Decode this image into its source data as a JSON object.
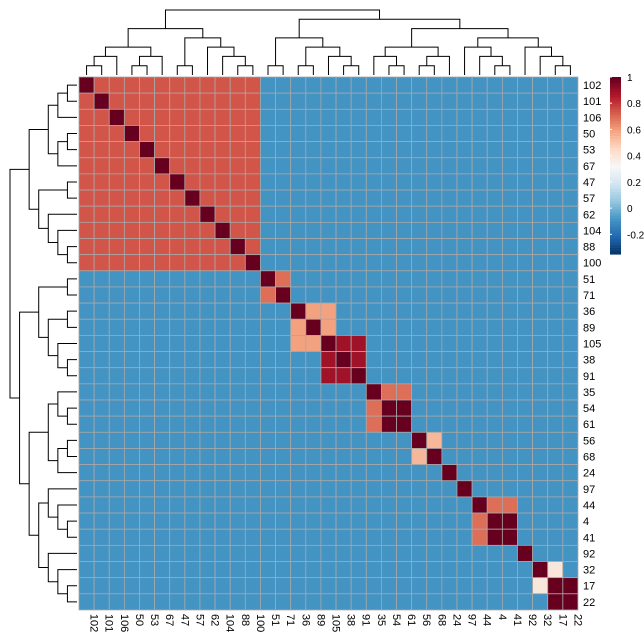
{
  "chart_data": {
    "type": "heatmap",
    "labels": [
      "102",
      "101",
      "106",
      "50",
      "53",
      "67",
      "47",
      "57",
      "62",
      "104",
      "88",
      "100",
      "51",
      "71",
      "36",
      "89",
      "105",
      "38",
      "91",
      "35",
      "54",
      "61",
      "56",
      "68",
      "24",
      "97",
      "44",
      "4",
      "41",
      "92",
      "32",
      "17",
      "22"
    ],
    "blocks": [
      {
        "members": [
          "102",
          "101",
          "106",
          "50",
          "53",
          "67",
          "47",
          "57",
          "62",
          "104",
          "88",
          "100"
        ],
        "value": 0.75
      },
      {
        "members": [
          "51",
          "71"
        ],
        "value": 0.7
      },
      {
        "members": [
          "36",
          "89",
          "105"
        ],
        "value": 0.6
      },
      {
        "members": [
          "105",
          "38",
          "91"
        ],
        "value": 0.9
      },
      {
        "members": [
          "35",
          "54",
          "61"
        ],
        "value": 0.7
      },
      {
        "members": [
          "54",
          "61"
        ],
        "value": 1.0
      },
      {
        "members": [
          "56",
          "68"
        ],
        "value": 0.55
      },
      {
        "members": [
          "44",
          "4",
          "41"
        ],
        "value": 0.7
      },
      {
        "members": [
          "4",
          "41"
        ],
        "value": 1.0
      },
      {
        "members": [
          "17",
          "22"
        ],
        "value": 1.0
      },
      {
        "members": [
          "32",
          "17"
        ],
        "value": 0.4
      }
    ],
    "background_value": -0.08,
    "color_scale": {
      "range": [
        -0.35,
        1
      ],
      "ticks": [
        -0.2,
        0,
        0.2,
        0.4,
        0.6,
        0.8,
        1
      ],
      "tick_labels": [
        "-0.2",
        "0",
        "0.2",
        "0.4",
        "0.6",
        "0.8",
        "1"
      ],
      "colors": [
        "#053061",
        "#2166ac",
        "#4393c3",
        "#92c5de",
        "#d1e5f0",
        "#f7f7f7",
        "#fddbc7",
        "#f4a582",
        "#d6604d",
        "#b2182b",
        "#67001f"
      ]
    },
    "grid": true,
    "legend": "right",
    "row_dendrogram": true,
    "column_dendrogram": true
  }
}
